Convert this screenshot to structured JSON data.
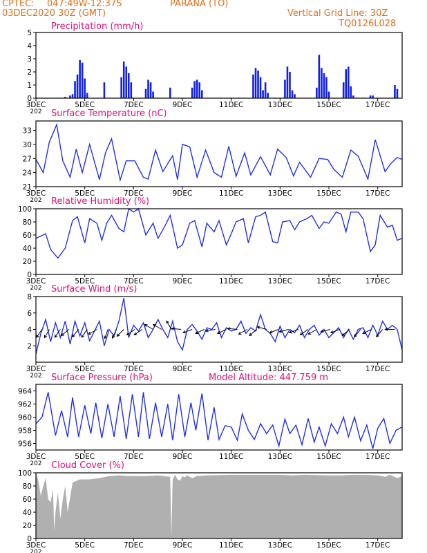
{
  "header": {
    "source": "CPTEC:",
    "coordinates": "047:49W-12:37S",
    "location": "PARANA (TO)",
    "init_time": "03DEC2020 30Z (GMT)",
    "grid_note": "Vertical Grid Line: 30Z",
    "code": "TQ0126L028"
  },
  "colors": {
    "header_text": "#e07020",
    "panel_title": "#e0107a",
    "line": "#2030e8",
    "bar": "#1020e8",
    "cloud": "#b0b0b0",
    "grid": "#000000"
  },
  "x_axis": {
    "start_day": 3,
    "end_day": 18,
    "tick_labels": [
      "3DEC",
      "5DEC",
      "7DEC",
      "9DEC",
      "11DEC",
      "13DEC",
      "15DEC",
      "17DEC"
    ],
    "tick_days": [
      3,
      5,
      7,
      9,
      11,
      13,
      15,
      17
    ],
    "first_label_overflow": "202"
  },
  "chart_data": [
    {
      "type": "bar",
      "title": "Precipitation (mm/h)",
      "ylim": [
        0,
        5
      ],
      "yticks": [
        0,
        1,
        2,
        3,
        4,
        5
      ],
      "x_unit": "day of December 2020",
      "x": [
        4.2,
        4.4,
        4.5,
        4.6,
        4.7,
        4.8,
        4.9,
        5.0,
        5.1,
        5.8,
        6.5,
        6.6,
        6.7,
        6.8,
        6.9,
        7.5,
        7.6,
        7.7,
        7.8,
        8.5,
        9.4,
        9.5,
        9.6,
        9.7,
        9.8,
        11.9,
        12.0,
        12.1,
        12.2,
        12.3,
        12.4,
        12.5,
        13.2,
        13.3,
        13.4,
        13.5,
        13.6,
        14.5,
        14.6,
        14.7,
        14.8,
        14.9,
        15.0,
        15.6,
        15.7,
        15.8,
        15.9,
        16.0,
        16.7,
        16.8,
        17.7,
        17.8
      ],
      "values": [
        0.1,
        0.2,
        0.3,
        1.3,
        1.8,
        2.9,
        2.7,
        1.5,
        0.4,
        1.2,
        1.6,
        2.8,
        2.4,
        1.9,
        1.2,
        0.7,
        1.4,
        1.2,
        0.5,
        0.8,
        0.8,
        1.3,
        1.4,
        1.2,
        0.6,
        1.8,
        2.3,
        2.1,
        1.6,
        0.6,
        1.2,
        0.4,
        1.4,
        2.4,
        2.0,
        0.6,
        0.3,
        0.8,
        3.3,
        2.3,
        1.9,
        1.6,
        0.5,
        1.2,
        2.2,
        2.4,
        0.9,
        0.2,
        0.2,
        0.2,
        1.0,
        0.7
      ]
    },
    {
      "type": "line",
      "title": "Surface Temperature (nC)",
      "ylim": [
        21,
        35
      ],
      "yticks": [
        21,
        24,
        27,
        30,
        33
      ],
      "x": [
        3.0,
        3.3,
        3.55,
        3.85,
        4.1,
        4.4,
        4.65,
        4.9,
        5.2,
        5.6,
        5.85,
        6.1,
        6.45,
        6.7,
        7.05,
        7.4,
        7.6,
        7.9,
        8.2,
        8.6,
        8.8,
        9.0,
        9.3,
        9.6,
        9.95,
        10.3,
        10.6,
        10.9,
        11.2,
        11.55,
        11.8,
        12.2,
        12.6,
        12.9,
        13.25,
        13.55,
        13.8,
        14.25,
        14.6,
        14.95,
        15.2,
        15.55,
        15.9,
        16.2,
        16.6,
        16.9,
        17.3,
        17.55,
        17.8,
        18.0
      ],
      "values": [
        26.8,
        24.0,
        30.5,
        34.2,
        26.5,
        23.0,
        29.0,
        24.0,
        30.0,
        22.5,
        28.2,
        31.2,
        22.4,
        26.5,
        26.5,
        23.0,
        22.6,
        28.8,
        24.2,
        27.6,
        22.5,
        30.0,
        29.5,
        23.0,
        28.8,
        24.0,
        23.0,
        29.6,
        23.2,
        28.2,
        23.5,
        27.4,
        23.5,
        29.0,
        27.2,
        23.3,
        26.2,
        23.0,
        27.0,
        26.8,
        24.7,
        23.0,
        28.8,
        27.5,
        22.6,
        31.0,
        24.2,
        26.0,
        27.2,
        26.8
      ]
    },
    {
      "type": "line",
      "title": "Relative Humidity (%)",
      "ylim": [
        0,
        100
      ],
      "yticks": [
        0,
        20,
        40,
        60,
        80,
        100
      ],
      "x": [
        3.0,
        3.4,
        3.6,
        3.9,
        4.2,
        4.5,
        4.7,
        5.0,
        5.2,
        5.5,
        5.7,
        5.9,
        6.1,
        6.4,
        6.6,
        6.8,
        7.0,
        7.2,
        7.5,
        7.8,
        8.0,
        8.3,
        8.5,
        8.8,
        9.0,
        9.3,
        9.5,
        9.8,
        10.0,
        10.3,
        10.5,
        10.8,
        11.0,
        11.2,
        11.5,
        11.7,
        12.0,
        12.2,
        12.4,
        12.7,
        12.9,
        13.1,
        13.4,
        13.6,
        13.8,
        14.1,
        14.3,
        14.6,
        14.8,
        15.0,
        15.3,
        15.5,
        15.7,
        15.9,
        16.2,
        16.4,
        16.7,
        16.9,
        17.1,
        17.4,
        17.6,
        17.8,
        18.0
      ],
      "values": [
        55,
        62,
        38,
        25,
        40,
        82,
        88,
        48,
        85,
        78,
        52,
        78,
        90,
        70,
        65,
        100,
        95,
        100,
        60,
        78,
        55,
        75,
        90,
        40,
        45,
        78,
        82,
        42,
        78,
        65,
        82,
        45,
        62,
        80,
        85,
        48,
        88,
        90,
        95,
        50,
        48,
        80,
        82,
        68,
        80,
        85,
        90,
        70,
        80,
        78,
        95,
        92,
        65,
        95,
        95,
        85,
        35,
        45,
        90,
        72,
        75,
        52,
        55
      ]
    },
    {
      "type": "line",
      "title": "Surface Wind (m/s)",
      "ylim": [
        0,
        8
      ],
      "yticks": [
        2,
        4,
        6,
        8
      ],
      "vectors_shown": true,
      "x": [
        3.0,
        3.2,
        3.4,
        3.6,
        3.8,
        4.0,
        4.2,
        4.4,
        4.6,
        4.8,
        5.0,
        5.2,
        5.4,
        5.6,
        5.8,
        6.0,
        6.2,
        6.4,
        6.6,
        6.8,
        7.0,
        7.2,
        7.4,
        7.6,
        7.8,
        8.0,
        8.2,
        8.4,
        8.6,
        8.8,
        9.0,
        9.2,
        9.4,
        9.6,
        9.8,
        10.0,
        10.2,
        10.4,
        10.6,
        10.8,
        11.0,
        11.2,
        11.4,
        11.6,
        11.8,
        12.0,
        12.2,
        12.4,
        12.6,
        12.8,
        13.0,
        13.2,
        13.4,
        13.6,
        13.8,
        14.0,
        14.2,
        14.4,
        14.6,
        14.8,
        15.0,
        15.2,
        15.4,
        15.6,
        15.8,
        16.0,
        16.2,
        16.4,
        16.6,
        16.8,
        17.0,
        17.2,
        17.4,
        17.6,
        17.8,
        18.0
      ],
      "values": [
        1.0,
        3.5,
        5.2,
        2.5,
        4.8,
        3.0,
        5.0,
        2.2,
        5.0,
        3.2,
        4.8,
        2.6,
        3.8,
        5.0,
        2.0,
        4.0,
        3.2,
        5.0,
        7.8,
        3.0,
        4.5,
        3.8,
        4.8,
        3.0,
        4.0,
        5.2,
        4.0,
        3.0,
        5.0,
        2.5,
        1.5,
        4.0,
        4.6,
        3.8,
        2.8,
        4.2,
        4.0,
        4.8,
        3.0,
        4.2,
        3.8,
        4.0,
        5.0,
        3.5,
        4.2,
        3.8,
        5.8,
        4.0,
        3.5,
        2.5,
        4.4,
        3.0,
        4.0,
        3.6,
        4.5,
        3.0,
        4.0,
        4.5,
        3.3,
        4.0,
        3.0,
        3.6,
        4.2,
        3.0,
        4.0,
        2.8,
        4.0,
        4.2,
        3.0,
        4.5,
        3.3,
        5.0,
        4.0,
        4.5,
        4.0,
        1.5
      ]
    },
    {
      "type": "line",
      "title": "Surface Pressure (hPa)",
      "annotation": "Model Altitude: 447.759 m",
      "ylim": [
        955,
        965
      ],
      "yticks": [
        956,
        958,
        960,
        962,
        964
      ],
      "x": [
        3.0,
        3.25,
        3.5,
        3.8,
        4.05,
        4.3,
        4.5,
        4.75,
        5.0,
        5.25,
        5.45,
        5.7,
        5.95,
        6.2,
        6.45,
        6.7,
        6.95,
        7.2,
        7.4,
        7.65,
        7.9,
        8.15,
        8.4,
        8.6,
        8.85,
        9.1,
        9.35,
        9.55,
        9.8,
        10.05,
        10.3,
        10.5,
        10.75,
        11.0,
        11.25,
        11.45,
        11.7,
        11.95,
        12.2,
        12.45,
        12.7,
        12.95,
        13.2,
        13.4,
        13.65,
        13.9,
        14.15,
        14.4,
        14.6,
        14.85,
        15.1,
        15.35,
        15.6,
        15.8,
        16.05,
        16.3,
        16.55,
        16.8,
        17.0,
        17.25,
        17.5,
        17.75,
        18.0
      ],
      "values": [
        959.0,
        960.0,
        963.8,
        957.2,
        961.0,
        957.0,
        963.0,
        957.0,
        961.8,
        957.5,
        962.2,
        956.8,
        962.0,
        957.0,
        963.2,
        956.7,
        963.5,
        957.0,
        963.8,
        956.7,
        962.2,
        957.0,
        962.0,
        956.5,
        963.5,
        957.0,
        962.2,
        958.0,
        963.6,
        956.5,
        961.5,
        956.6,
        958.7,
        958.5,
        956.5,
        960.5,
        958.0,
        956.6,
        959.0,
        957.5,
        958.8,
        955.6,
        959.7,
        957.5,
        958.8,
        955.8,
        959.8,
        956.2,
        958.5,
        955.6,
        959.0,
        957.5,
        960.0,
        957.0,
        960.0,
        956.4,
        958.8,
        955.2,
        958.3,
        959.8,
        956.0,
        958.0,
        958.5
      ]
    },
    {
      "type": "area",
      "title": "Cloud Cover (%)",
      "ylim": [
        0,
        100
      ],
      "yticks": [
        0,
        20,
        40,
        60,
        80,
        100
      ],
      "x": [
        3.0,
        3.1,
        3.2,
        3.3,
        3.4,
        3.5,
        3.6,
        3.7,
        3.75,
        3.8,
        3.9,
        4.0,
        4.1,
        4.2,
        4.3,
        4.5,
        4.8,
        5.2,
        5.6,
        6.0,
        6.4,
        6.8,
        7.0,
        7.5,
        8.0,
        8.5,
        8.55,
        8.6,
        8.7,
        8.8,
        8.9,
        9.0,
        9.1,
        9.2,
        9.4,
        9.6,
        10.0,
        11.0,
        12.0,
        13.0,
        13.5,
        14.0,
        15.0,
        15.5,
        16.0,
        16.5,
        17.0,
        17.3,
        17.5,
        17.8,
        18.0
      ],
      "values": [
        100,
        88,
        65,
        80,
        92,
        60,
        55,
        75,
        12,
        40,
        70,
        30,
        60,
        80,
        40,
        85,
        90,
        90,
        92,
        95,
        96,
        95,
        95,
        95,
        96,
        94,
        5,
        90,
        97,
        90,
        88,
        95,
        93,
        96,
        92,
        95,
        96,
        97,
        97,
        97,
        96,
        97,
        96,
        96,
        97,
        97,
        96,
        94,
        97,
        92,
        95
      ]
    }
  ],
  "wind_vectors": [
    {
      "x": 3.25,
      "angle": 235
    },
    {
      "x": 3.55,
      "angle": 240
    },
    {
      "x": 4.0,
      "angle": 235
    },
    {
      "x": 4.35,
      "angle": 220
    },
    {
      "x": 4.75,
      "angle": 230
    },
    {
      "x": 5.1,
      "angle": 235
    },
    {
      "x": 5.5,
      "angle": 210
    },
    {
      "x": 5.95,
      "angle": 250
    },
    {
      "x": 6.3,
      "angle": 245
    },
    {
      "x": 6.6,
      "angle": 225
    },
    {
      "x": 7.05,
      "angle": 215
    },
    {
      "x": 7.35,
      "angle": 215
    },
    {
      "x": 7.8,
      "angle": 150
    },
    {
      "x": 8.15,
      "angle": 150
    },
    {
      "x": 8.55,
      "angle": 120
    },
    {
      "x": 8.95,
      "angle": 175
    },
    {
      "x": 9.4,
      "angle": 200
    },
    {
      "x": 9.9,
      "angle": 205
    },
    {
      "x": 10.35,
      "angle": 190
    },
    {
      "x": 10.8,
      "angle": 205
    },
    {
      "x": 11.25,
      "angle": 175
    },
    {
      "x": 11.65,
      "angle": 210
    },
    {
      "x": 12.05,
      "angle": 220
    },
    {
      "x": 12.45,
      "angle": 165
    },
    {
      "x": 12.95,
      "angle": 200
    },
    {
      "x": 13.35,
      "angle": 195
    },
    {
      "x": 13.75,
      "angle": 200
    },
    {
      "x": 14.15,
      "angle": 215
    },
    {
      "x": 14.5,
      "angle": 210
    },
    {
      "x": 15.05,
      "angle": 195
    },
    {
      "x": 15.45,
      "angle": 200
    },
    {
      "x": 15.85,
      "angle": 220
    },
    {
      "x": 16.3,
      "angle": 230
    },
    {
      "x": 16.75,
      "angle": 205
    },
    {
      "x": 17.2,
      "angle": 230
    },
    {
      "x": 17.7,
      "angle": 180
    }
  ]
}
